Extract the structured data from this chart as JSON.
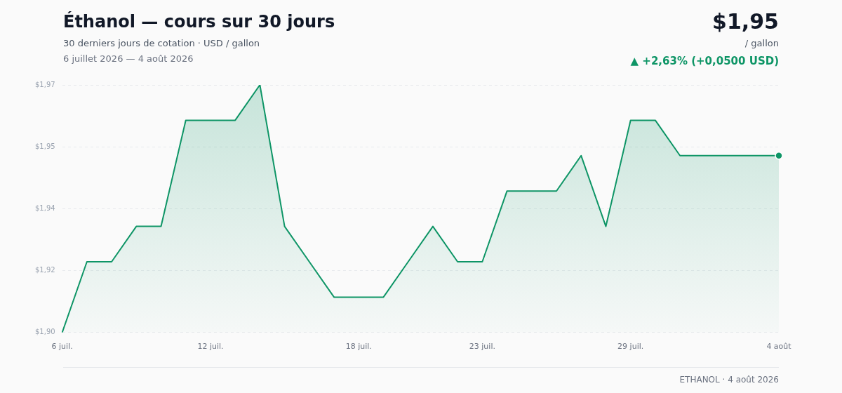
{
  "chart_data": {
    "type": "area",
    "title": "Éthanol — cours sur 30 jours",
    "subtitle": "30 derniers jours de cotation · USD / gallon",
    "annotations": [
      "6 juillet 2026 — 4 août 2026",
      "$1,95",
      "/ gallon",
      "▲ +2,63% (+0,0500 USD)",
      "ETHANOL · 4 août 2026"
    ],
    "categories": [
      "6 juil.",
      null,
      null,
      null,
      null,
      null,
      "12 juil.",
      null,
      null,
      null,
      null,
      null,
      "18 juil.",
      null,
      null,
      null,
      null,
      "23 juil.",
      null,
      null,
      null,
      null,
      null,
      "29 juil.",
      null,
      null,
      null,
      null,
      null,
      "4 août"
    ],
    "values": [
      1.9,
      1.92,
      1.92,
      1.93,
      1.93,
      1.96,
      1.96,
      1.96,
      1.97,
      1.93,
      1.92,
      1.91,
      1.91,
      1.91,
      1.92,
      1.93,
      1.92,
      1.92,
      1.94,
      1.94,
      1.94,
      1.95,
      1.93,
      1.96,
      1.96,
      1.95,
      1.95,
      1.95,
      1.95,
      1.95
    ],
    "color": "#0e9566",
    "ylim": [
      1.9,
      1.97
    ],
    "yticks": [
      {
        "value": 1.9,
        "label": "$1,90"
      },
      {
        "value": 1.9175,
        "label": "$1,92"
      },
      {
        "value": 1.935,
        "label": "$1,94"
      },
      {
        "value": 1.9525,
        "label": "$1,95"
      },
      {
        "value": 1.97,
        "label": "$1,97"
      }
    ],
    "grid": "y",
    "legend": false,
    "marker": "none",
    "line_style": "solid"
  }
}
